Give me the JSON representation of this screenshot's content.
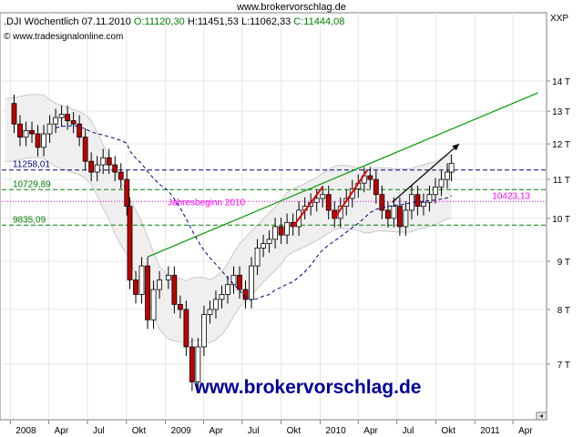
{
  "site_header": "www.brokervorschlag.de",
  "legend": {
    "symbol": ".DJI",
    "period": "Wöchentlich",
    "date": "07.11.2010",
    "open": "O:11120,30",
    "high": "H:11451,53",
    "low": "L:11062,33",
    "close": "C:11444,08"
  },
  "copyright": "© www.tradesignalonline.com",
  "exchange": "XXP",
  "watermark": "www.brokervorschlag.de",
  "colors": {
    "up_candle": "#ffffff",
    "down_candle": "#c00000",
    "band": "#c8c8c8",
    "band_fill": "#efefef",
    "trendline": "#009900",
    "resistance": "#000080",
    "support": "#008000",
    "year_start": "#ff00ff",
    "watermark": "#000099",
    "close_text": "#008000"
  },
  "chart_data": {
    "type": "candlestick",
    "yscale": "log",
    "ylim": [
      6400,
      15000
    ],
    "y_ticks": [
      {
        "value": 14000,
        "label": "14 T"
      },
      {
        "value": 13000,
        "label": "13 T"
      },
      {
        "value": 12000,
        "label": "12 T"
      },
      {
        "value": 11000,
        "label": "11 T"
      },
      {
        "value": 10000,
        "label": "10 T"
      },
      {
        "value": 9000,
        "label": "9 T"
      },
      {
        "value": 8000,
        "label": "8 T"
      },
      {
        "value": 7000,
        "label": "7 T"
      }
    ],
    "x_ticks": [
      {
        "date": "2008-01",
        "label": "2008"
      },
      {
        "date": "2008-04",
        "label": "Apr"
      },
      {
        "date": "2008-07",
        "label": "Jul"
      },
      {
        "date": "2008-10",
        "label": "Okt"
      },
      {
        "date": "2009-01",
        "label": "2009"
      },
      {
        "date": "2009-04",
        "label": "Apr"
      },
      {
        "date": "2009-07",
        "label": "Jul"
      },
      {
        "date": "2009-10",
        "label": "Okt"
      },
      {
        "date": "2010-01",
        "label": "2010"
      },
      {
        "date": "2010-04",
        "label": "Apr"
      },
      {
        "date": "2010-07",
        "label": "Jul"
      },
      {
        "date": "2010-10",
        "label": "Okt"
      },
      {
        "date": "2011-01",
        "label": "2011"
      },
      {
        "date": "2011-04",
        "label": "Apr"
      }
    ],
    "horizontal_levels": [
      {
        "value": 11258.01,
        "label": "11258,01",
        "style": "dashed",
        "color": "#000080"
      },
      {
        "value": 10729.89,
        "label": "10729,89",
        "style": "dashed",
        "color": "#008000"
      },
      {
        "value": 10423.13,
        "label": "10423,13",
        "style": "dotted",
        "color": "#ff00ff"
      },
      {
        "value": 9835.09,
        "label": "9835,09",
        "style": "dashed",
        "color": "#008000"
      }
    ],
    "annotation": "Jahresbeginn 2010",
    "close_path": [
      [
        "2007-12-20",
        13250
      ],
      [
        "2008-01-10",
        12600
      ],
      [
        "2008-01-24",
        12200
      ],
      [
        "2008-02-07",
        12400
      ],
      [
        "2008-02-21",
        12300
      ],
      [
        "2008-03-06",
        11900
      ],
      [
        "2008-03-20",
        12300
      ],
      [
        "2008-04-03",
        12600
      ],
      [
        "2008-04-17",
        12800
      ],
      [
        "2008-05-01",
        12900
      ],
      [
        "2008-05-15",
        12700
      ],
      [
        "2008-05-29",
        12600
      ],
      [
        "2008-06-12",
        12200
      ],
      [
        "2008-06-26",
        11500
      ],
      [
        "2008-07-10",
        11200
      ],
      [
        "2008-07-24",
        11400
      ],
      [
        "2008-08-07",
        11600
      ],
      [
        "2008-08-21",
        11400
      ],
      [
        "2008-09-04",
        11200
      ],
      [
        "2008-09-18",
        11000
      ],
      [
        "2008-10-02",
        10300
      ],
      [
        "2008-10-09",
        8600
      ],
      [
        "2008-10-23",
        8300
      ],
      [
        "2008-11-06",
        8900
      ],
      [
        "2008-11-20",
        7800
      ],
      [
        "2008-12-04",
        8400
      ],
      [
        "2008-12-18",
        8600
      ],
      [
        "2009-01-08",
        8700
      ],
      [
        "2009-01-22",
        8100
      ],
      [
        "2009-02-05",
        8000
      ],
      [
        "2009-02-19",
        7300
      ],
      [
        "2009-03-05",
        6700
      ],
      [
        "2009-03-19",
        7300
      ],
      [
        "2009-04-02",
        7900
      ],
      [
        "2009-04-16",
        8000
      ],
      [
        "2009-04-30",
        8200
      ],
      [
        "2009-05-14",
        8300
      ],
      [
        "2009-05-28",
        8500
      ],
      [
        "2009-06-11",
        8700
      ],
      [
        "2009-06-25",
        8400
      ],
      [
        "2009-07-09",
        8200
      ],
      [
        "2009-07-23",
        8900
      ],
      [
        "2009-08-06",
        9300
      ],
      [
        "2009-08-20",
        9400
      ],
      [
        "2009-09-03",
        9500
      ],
      [
        "2009-09-17",
        9800
      ],
      [
        "2009-10-01",
        9600
      ],
      [
        "2009-10-15",
        9900
      ],
      [
        "2009-10-29",
        9800
      ],
      [
        "2009-11-12",
        10200
      ],
      [
        "2009-11-26",
        10300
      ],
      [
        "2009-12-10",
        10400
      ],
      [
        "2009-12-24",
        10500
      ],
      [
        "2010-01-07",
        10600
      ],
      [
        "2010-01-21",
        10200
      ],
      [
        "2010-02-04",
        10000
      ],
      [
        "2010-02-18",
        10300
      ],
      [
        "2010-03-04",
        10500
      ],
      [
        "2010-03-18",
        10750
      ],
      [
        "2010-04-01",
        10900
      ],
      [
        "2010-04-15",
        11100
      ],
      [
        "2010-04-29",
        11000
      ],
      [
        "2010-05-13",
        10600
      ],
      [
        "2010-05-27",
        10200
      ],
      [
        "2010-06-10",
        10000
      ],
      [
        "2010-06-24",
        10300
      ],
      [
        "2010-07-08",
        9800
      ],
      [
        "2010-07-22",
        10200
      ],
      [
        "2010-08-05",
        10600
      ],
      [
        "2010-08-19",
        10300
      ],
      [
        "2010-09-02",
        10400
      ],
      [
        "2010-09-16",
        10600
      ],
      [
        "2010-09-30",
        10800
      ],
      [
        "2010-10-14",
        11000
      ],
      [
        "2010-10-28",
        11200
      ],
      [
        "2010-11-07",
        11444
      ]
    ],
    "drawings": [
      {
        "type": "trendline",
        "from": [
          "2008-11-20",
          9100
        ],
        "to": [
          "2011-05-30",
          13600
        ],
        "color": "#009900"
      },
      {
        "type": "arrow",
        "from": [
          "2010-06-20",
          10400
        ],
        "to": [
          "2010-11-25",
          12000
        ],
        "color": "#000000"
      }
    ]
  }
}
